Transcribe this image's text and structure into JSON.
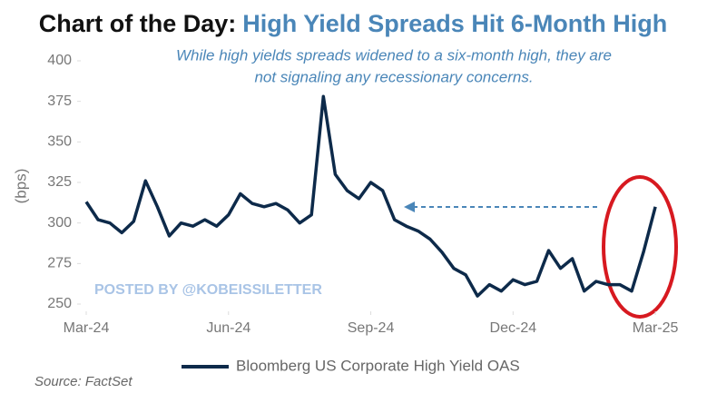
{
  "chart_data": {
    "type": "line",
    "title_prefix": "Chart of the Day:",
    "title": "High Yield Spreads Hit 6-Month High",
    "subtitle": [
      "While high yields spreads widened to a six-month high, they are",
      "not signaling any recessionary concerns."
    ],
    "y_label": "(bps)",
    "watermark": "POSTED BY @KOBEISSILETTER",
    "source": "Source: FactSet",
    "x": [
      0,
      0.25,
      0.5,
      0.75,
      1,
      1.25,
      1.5,
      1.75,
      2,
      2.25,
      2.5,
      2.75,
      3,
      3.25,
      3.5,
      3.75,
      4,
      4.25,
      4.5,
      4.75,
      5,
      5.25,
      5.5,
      5.75,
      6,
      6.25,
      6.5,
      6.75,
      7,
      7.25,
      7.5,
      7.75,
      8,
      8.25,
      8.5,
      8.75,
      9,
      9.25,
      9.5,
      9.75,
      10,
      10.25,
      10.5,
      10.75,
      11,
      11.25,
      11.5,
      11.75,
      12
    ],
    "series": [
      {
        "name": "Bloomberg US Corporate High Yield OAS",
        "color": "#0d2a4a",
        "values": [
          313,
          302,
          300,
          294,
          301,
          326,
          310,
          292,
          300,
          298,
          302,
          298,
          305,
          318,
          312,
          310,
          312,
          308,
          300,
          305,
          378,
          330,
          320,
          315,
          325,
          320,
          302,
          298,
          295,
          290,
          282,
          272,
          268,
          255,
          262,
          258,
          265,
          262,
          264,
          283,
          272,
          278,
          258,
          264,
          262,
          262,
          258,
          282,
          310
        ]
      }
    ],
    "xlim": [
      0,
      12.4
    ],
    "xticks": [
      {
        "value": 0,
        "label": "Mar-24"
      },
      {
        "value": 3,
        "label": "Jun-24"
      },
      {
        "value": 6,
        "label": "Sep-24"
      },
      {
        "value": 9,
        "label": "Dec-24"
      },
      {
        "value": 12,
        "label": "Mar-25"
      }
    ],
    "ylim": [
      250,
      400
    ],
    "yticks": [
      250,
      275,
      300,
      325,
      350,
      375,
      400
    ],
    "grid": false
  }
}
